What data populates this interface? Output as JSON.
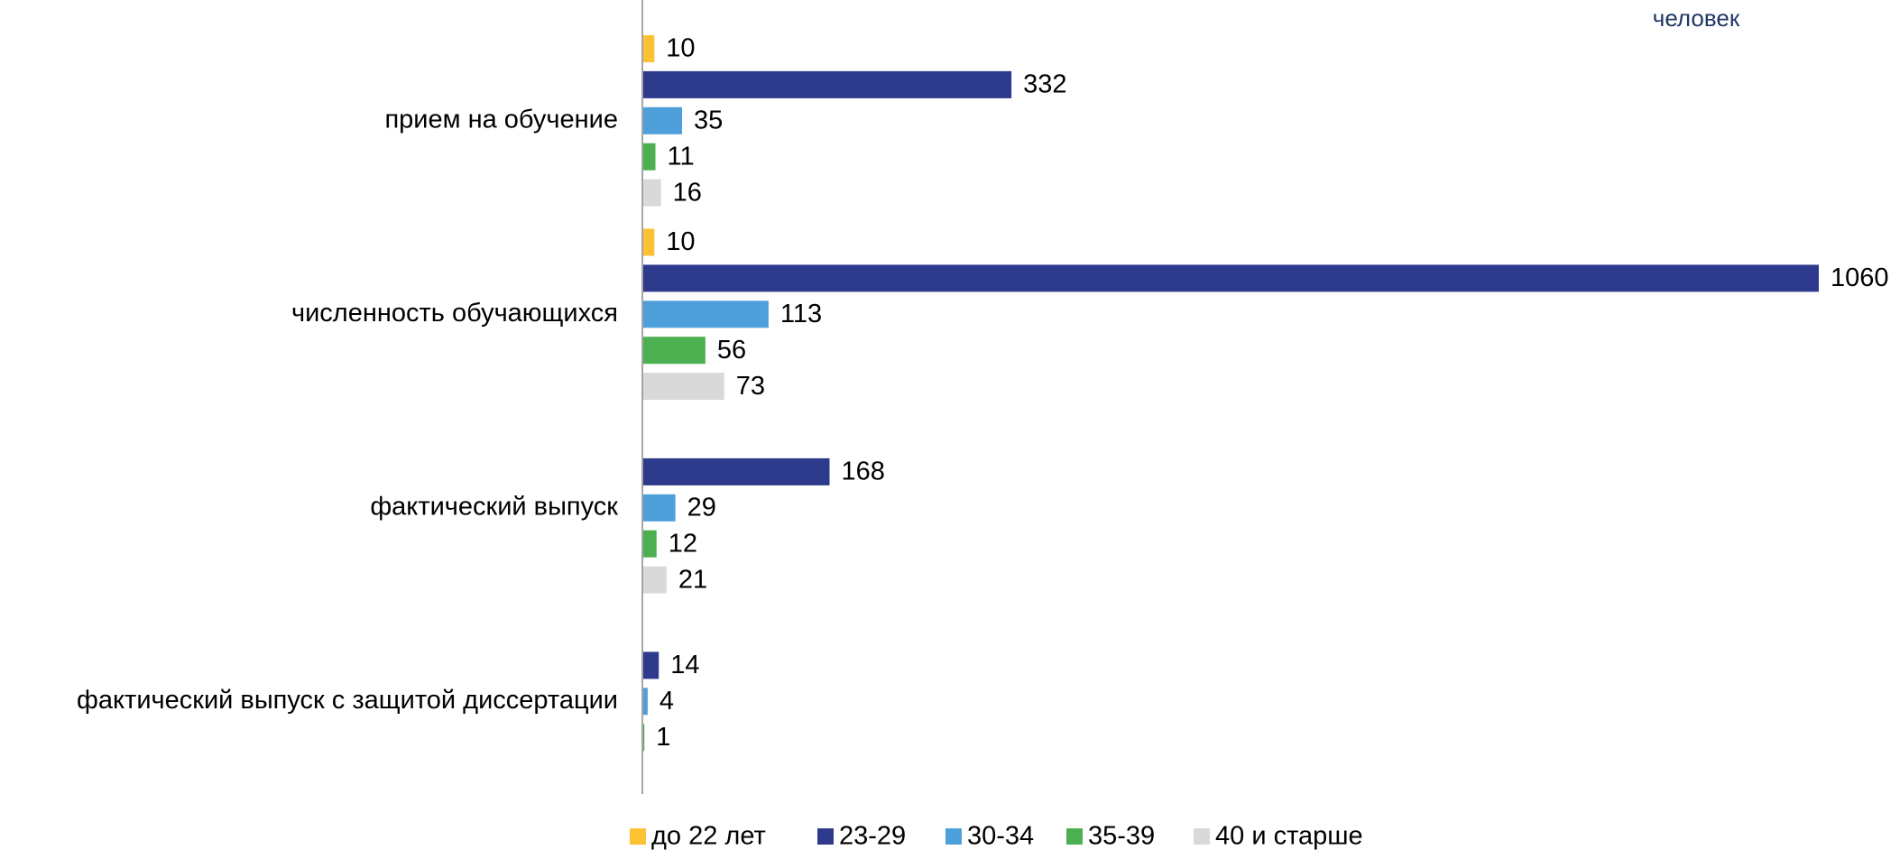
{
  "chart_data": {
    "type": "hbar",
    "annotation": "человек",
    "categories": [
      "прием на обучение",
      "численность обучающихся",
      "фактический выпуск",
      "фактический выпуск с защитой диссертации"
    ],
    "series": [
      {
        "name": "до 22 лет",
        "color": "#fcc232",
        "values": [
          10,
          10,
          null,
          null
        ]
      },
      {
        "name": "23-29",
        "color": "#2e3a8c",
        "values": [
          332,
          1060,
          168,
          14
        ]
      },
      {
        "name": "30-34",
        "color": "#4ea0da",
        "values": [
          35,
          113,
          29,
          4
        ]
      },
      {
        "name": "35-39",
        "color": "#4caf50",
        "values": [
          11,
          56,
          12,
          1
        ]
      },
      {
        "name": "40 и старше",
        "color": "#d9d9d9",
        "values": [
          16,
          73,
          21,
          null
        ]
      }
    ],
    "legend": "bottom"
  }
}
